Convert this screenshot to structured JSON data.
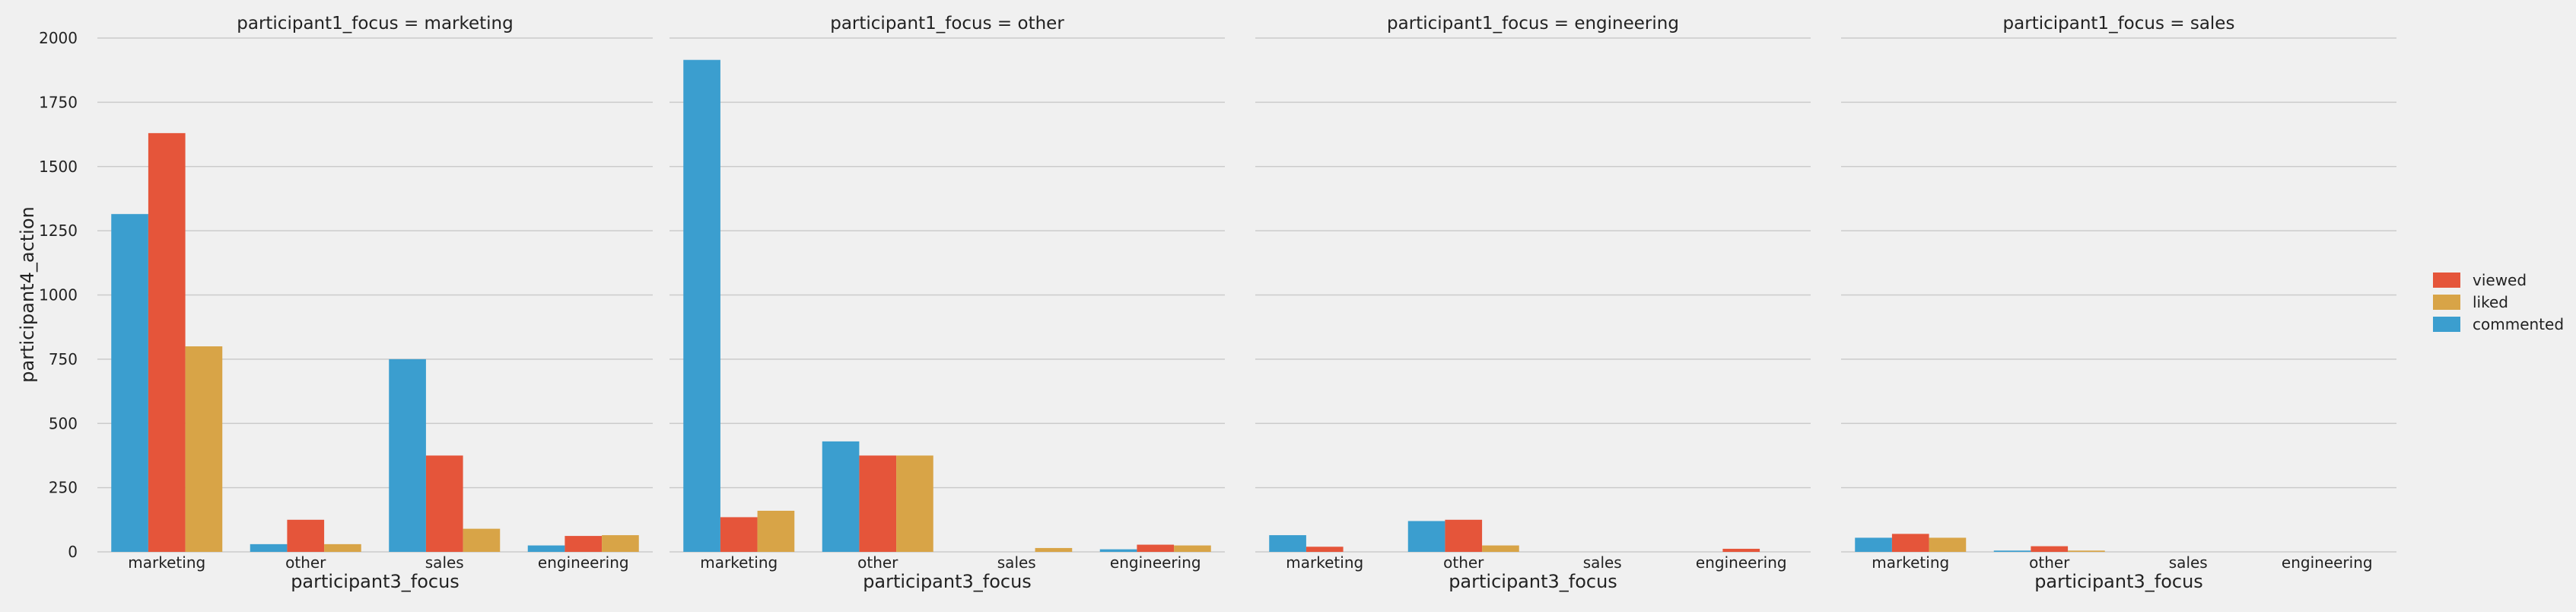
{
  "chart_data": {
    "type": "bar",
    "ylabel": "participant4_action",
    "ylim": [
      0,
      2000
    ],
    "yticks": [
      0,
      250,
      500,
      750,
      1000,
      1250,
      1500,
      1750,
      2000
    ],
    "grid": true,
    "legend_position": "right",
    "hue_order": [
      "commented",
      "viewed",
      "liked"
    ],
    "legend_order": [
      "viewed",
      "liked",
      "commented"
    ],
    "categories": [
      "marketing",
      "other",
      "sales",
      "engineering"
    ],
    "colors": {
      "commented": "#3b9ecf",
      "viewed": "#e5553a",
      "liked": "#d8a447"
    },
    "panels": [
      {
        "title": "participant1_focus = marketing",
        "xlabel": "participant3_focus",
        "series": [
          {
            "name": "commented",
            "values": [
              1315,
              30,
              750,
              25
            ]
          },
          {
            "name": "viewed",
            "values": [
              1630,
              125,
              375,
              62
            ]
          },
          {
            "name": "liked",
            "values": [
              800,
              30,
              90,
              65
            ]
          }
        ]
      },
      {
        "title": "participant1_focus = other",
        "xlabel": "participant3_focus",
        "series": [
          {
            "name": "commented",
            "values": [
              1915,
              430,
              0,
              10
            ]
          },
          {
            "name": "viewed",
            "values": [
              135,
              375,
              0,
              28
            ]
          },
          {
            "name": "liked",
            "values": [
              160,
              375,
              15,
              25
            ]
          }
        ]
      },
      {
        "title": "participant1_focus = engineering",
        "xlabel": "participant3_focus",
        "series": [
          {
            "name": "commented",
            "values": [
              65,
              120,
              0,
              0
            ]
          },
          {
            "name": "viewed",
            "values": [
              20,
              125,
              0,
              12
            ]
          },
          {
            "name": "liked",
            "values": [
              0,
              25,
              0,
              0
            ]
          }
        ]
      },
      {
        "title": "participant1_focus = sales",
        "xlabel": "participant3_focus",
        "series": [
          {
            "name": "commented",
            "values": [
              55,
              5,
              0,
              0
            ]
          },
          {
            "name": "viewed",
            "values": [
              70,
              22,
              0,
              0
            ]
          },
          {
            "name": "liked",
            "values": [
              55,
              5,
              0,
              0
            ]
          }
        ]
      }
    ]
  }
}
